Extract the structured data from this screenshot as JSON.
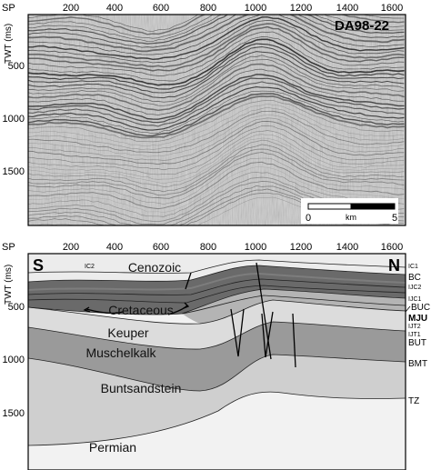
{
  "seismic_panel": {
    "profile_id": "DA98-22",
    "sp_label": "SP",
    "twt_label": "TWT (ms)",
    "sp_ticks": [
      "200",
      "400",
      "600",
      "800",
      "1000",
      "1200",
      "1400",
      "1600"
    ],
    "twt_ticks": [
      "500",
      "1000",
      "1500"
    ],
    "scale_bar": {
      "start": "0",
      "unit": "km",
      "end": "5"
    }
  },
  "interpretation_panel": {
    "sp_label": "SP",
    "twt_label": "TWT (ms)",
    "sp_ticks": [
      "200",
      "400",
      "600",
      "800",
      "1000",
      "1200",
      "1400",
      "1600"
    ],
    "twt_ticks": [
      "500",
      "1000",
      "1500"
    ],
    "south": "S",
    "north": "N",
    "units": [
      "Cenozoic",
      "Cretaceous",
      "Keuper",
      "Muschelkalk",
      "Buntsandstein",
      "Permian"
    ],
    "ic2_inline": "IC2",
    "horizons": [
      "IC1",
      "BC",
      "IJC2",
      "IJC1",
      "BUC",
      "MJU",
      "IJT2",
      "IJT1",
      "BUT",
      "BMT",
      "TZ"
    ]
  },
  "colors": {
    "cenozoic": "#ececec",
    "cretaceous_dark": "#6a6a6a",
    "cretaceous_mid": "#7d7d7d",
    "jurassic": "#b4b4b4",
    "keuper": "#dcdcdc",
    "muschelkalk": "#9a9a9a",
    "buntsandstein": "#cfcfcf",
    "permian": "#f2f2f2"
  }
}
